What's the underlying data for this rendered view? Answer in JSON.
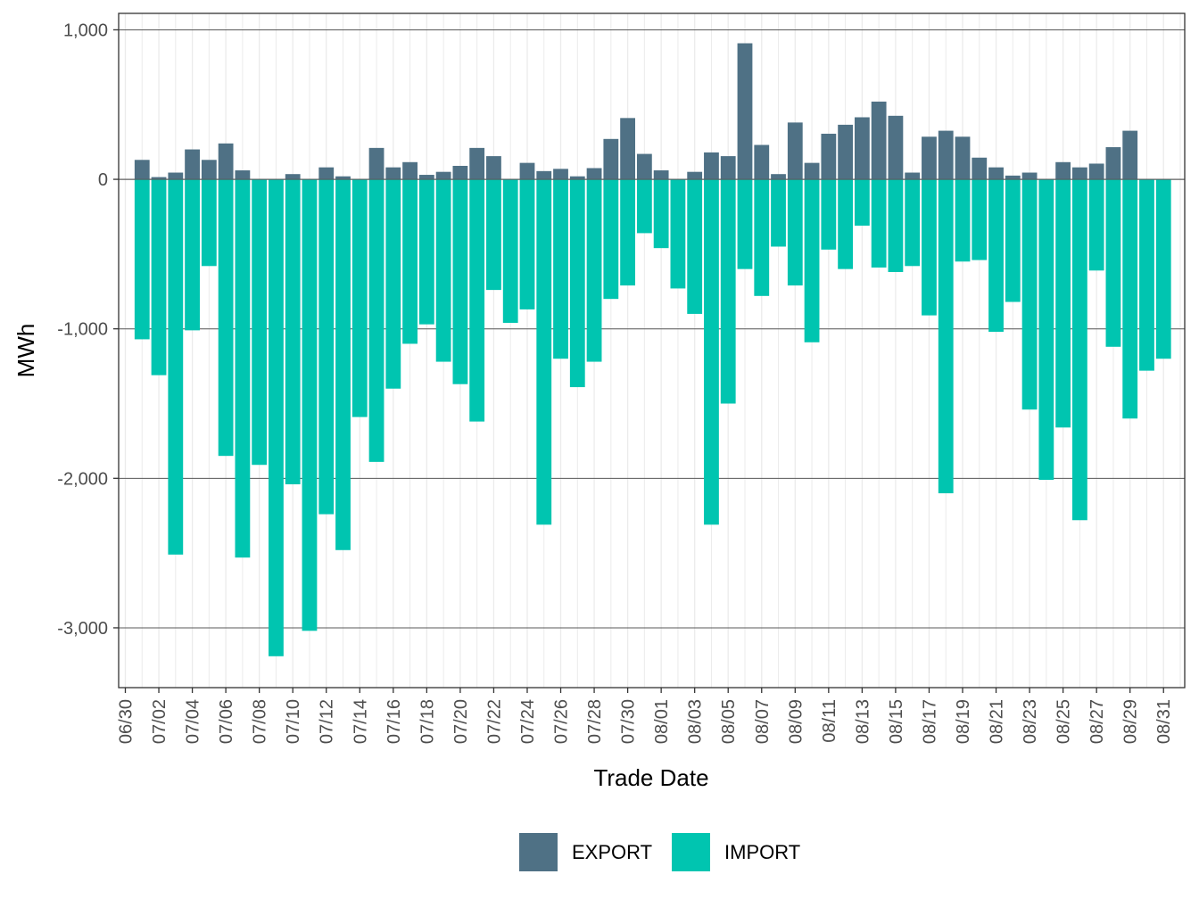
{
  "chart_data": {
    "type": "bar",
    "stacked": true,
    "xlabel": "Trade Date",
    "ylabel": "MWh",
    "ylim": [
      -3400,
      1110
    ],
    "yticks": [
      1000,
      0,
      -1000,
      -2000,
      -3000
    ],
    "ytick_labels": [
      "1,000",
      "0",
      "-1,000",
      "-2,000",
      "-3,000"
    ],
    "xtick_labels": [
      "06/30",
      "07/02",
      "07/04",
      "07/06",
      "07/08",
      "07/10",
      "07/12",
      "07/14",
      "07/16",
      "07/18",
      "07/20",
      "07/22",
      "07/24",
      "07/26",
      "07/28",
      "07/30",
      "08/01",
      "08/03",
      "08/05",
      "08/07",
      "08/09",
      "08/11",
      "08/13",
      "08/15",
      "08/17",
      "08/19",
      "08/21",
      "08/23",
      "08/25",
      "08/27",
      "08/29",
      "08/31"
    ],
    "grid": true,
    "legend_position": "bottom",
    "categories": [
      "07/01",
      "07/02",
      "07/03",
      "07/04",
      "07/05",
      "07/06",
      "07/07",
      "07/08",
      "07/09",
      "07/10",
      "07/11",
      "07/12",
      "07/13",
      "07/14",
      "07/15",
      "07/16",
      "07/17",
      "07/18",
      "07/19",
      "07/20",
      "07/21",
      "07/22",
      "07/23",
      "07/24",
      "07/25",
      "07/26",
      "07/27",
      "07/28",
      "07/29",
      "07/30",
      "07/31",
      "08/01",
      "08/02",
      "08/03",
      "08/04",
      "08/05",
      "08/06",
      "08/07",
      "08/08",
      "08/09",
      "08/10",
      "08/11",
      "08/12",
      "08/13",
      "08/14",
      "08/15",
      "08/16",
      "08/17",
      "08/18",
      "08/19",
      "08/20",
      "08/21",
      "08/22",
      "08/23",
      "08/24",
      "08/25",
      "08/26",
      "08/27",
      "08/28",
      "08/29",
      "08/30",
      "08/31"
    ],
    "series": [
      {
        "name": "EXPORT",
        "color": "#4f7185",
        "values": [
          130,
          15,
          45,
          200,
          130,
          240,
          60,
          0,
          0,
          35,
          0,
          80,
          20,
          0,
          210,
          80,
          115,
          30,
          50,
          90,
          210,
          155,
          0,
          110,
          55,
          70,
          20,
          75,
          270,
          410,
          170,
          60,
          0,
          50,
          180,
          155,
          910,
          230,
          35,
          380,
          110,
          305,
          365,
          415,
          520,
          425,
          45,
          285,
          325,
          285,
          145,
          80,
          25,
          45,
          0,
          115,
          80,
          105,
          215,
          325,
          0,
          0
        ]
      },
      {
        "name": "IMPORT",
        "color": "#00c5b0",
        "values": [
          -1070,
          -1310,
          -2510,
          -1010,
          -580,
          -1850,
          -2530,
          -1910,
          -3190,
          -2040,
          -3020,
          -2240,
          -2480,
          -1590,
          -1890,
          -1400,
          -1100,
          -970,
          -1220,
          -1370,
          -1620,
          -740,
          -960,
          -870,
          -2310,
          -1200,
          -1390,
          -1220,
          -800,
          -710,
          -360,
          -460,
          -730,
          -900,
          -2310,
          -1500,
          -600,
          -780,
          -450,
          -710,
          -1090,
          -470,
          -600,
          -310,
          -590,
          -620,
          -580,
          -910,
          -2100,
          -550,
          -540,
          -1020,
          -820,
          -1540,
          -2010,
          -1660,
          -2280,
          -610,
          -1120,
          -1600,
          -1280,
          -1200
        ]
      }
    ]
  }
}
